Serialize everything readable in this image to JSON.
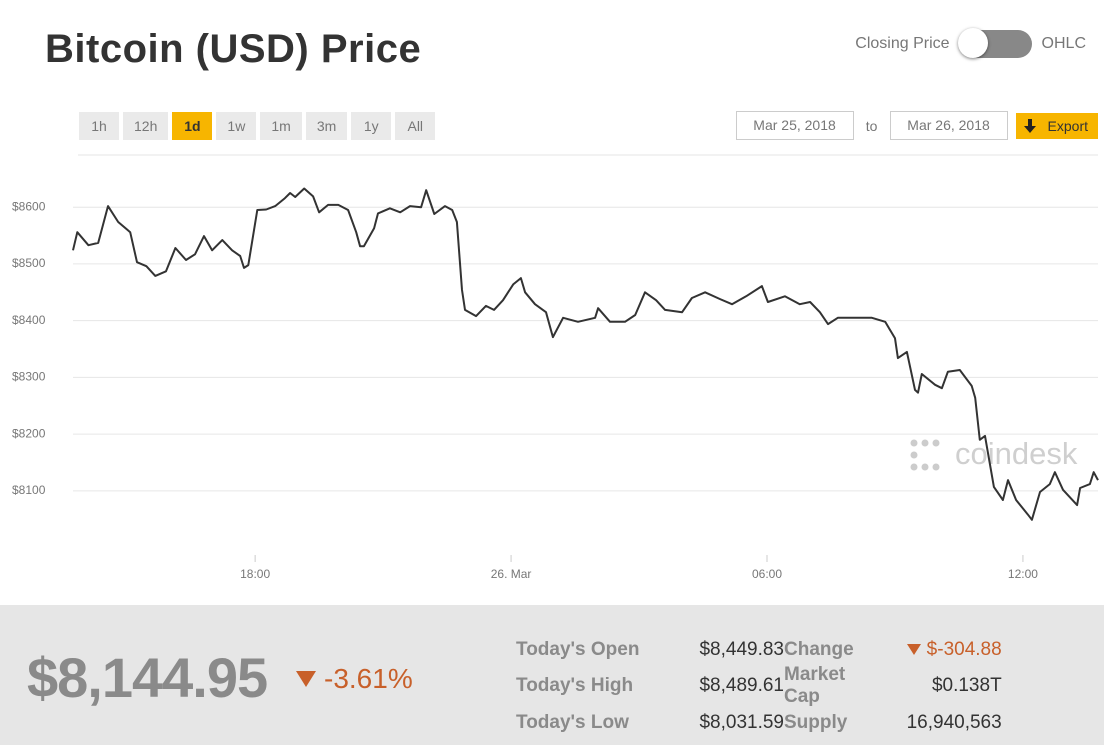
{
  "header": {
    "title": "Bitcoin (USD) Price",
    "toggle_left": "Closing Price",
    "toggle_right": "OHLC"
  },
  "ranges": {
    "items": [
      "1h",
      "12h",
      "1d",
      "1w",
      "1m",
      "3m",
      "1y",
      "All"
    ],
    "active": 2
  },
  "dates": {
    "from": "Mar 25, 2018",
    "to_label": "to",
    "to": "Mar 26, 2018",
    "export": "Export"
  },
  "chart_data": {
    "type": "line",
    "color": "#333333",
    "watermark": "coindesk",
    "x": [
      13.73,
      13.83,
      14.09,
      14.32,
      14.55,
      14.79,
      15.07,
      15.23,
      15.45,
      15.66,
      15.91,
      16.13,
      16.38,
      16.59,
      16.8,
      16.99,
      17.23,
      17.46,
      17.65,
      17.74,
      17.84,
      18.05,
      18.26,
      18.47,
      18.7,
      18.82,
      18.94,
      19.15,
      19.36,
      19.5,
      19.71,
      19.95,
      20.18,
      20.37,
      20.46,
      20.55,
      20.79,
      20.88,
      21.16,
      21.4,
      21.63,
      21.89,
      22.01,
      22.2,
      22.45,
      22.62,
      22.73,
      22.85,
      22.92,
      23.18,
      23.41,
      23.6,
      23.81,
      24.05,
      24.23,
      24.33,
      24.56,
      24.82,
      24.98,
      25.22,
      25.57,
      25.97,
      26.04,
      26.32,
      26.67,
      26.91,
      27.14,
      27.4,
      27.61,
      28.01,
      28.24,
      28.55,
      28.9,
      29.18,
      29.51,
      29.88,
      30.02,
      30.42,
      30.77,
      31.01,
      31.24,
      31.43,
      31.66,
      31.85,
      32.18,
      32.46,
      32.77,
      33.0,
      33.07,
      33.28,
      33.47,
      33.54,
      33.63,
      33.94,
      34.1,
      34.24,
      34.52,
      34.8,
      34.88,
      34.99,
      35.11,
      35.32,
      35.53,
      35.65,
      35.84,
      36.12,
      36.21,
      36.4,
      36.63,
      36.75,
      36.94,
      37.27,
      37.34,
      37.57,
      37.66,
      37.76
    ],
    "values": [
      8524,
      8556,
      8533,
      8537,
      8602,
      8574,
      8556,
      8503,
      8496,
      8479,
      8487,
      8528,
      8507,
      8517,
      8549,
      8524,
      8542,
      8524,
      8514,
      8493,
      8498,
      8595,
      8596,
      8602,
      8616,
      8625,
      8618,
      8633,
      8619,
      8591,
      8604,
      8604,
      8595,
      8556,
      8531,
      8531,
      8563,
      8589,
      8598,
      8591,
      8602,
      8600,
      8630,
      8588,
      8602,
      8595,
      8574,
      8454,
      8419,
      8408,
      8426,
      8419,
      8436,
      8464,
      8475,
      8450,
      8429,
      8415,
      8371,
      8405,
      8398,
      8405,
      8422,
      8398,
      8398,
      8410,
      8450,
      8436,
      8419,
      8415,
      8440,
      8450,
      8438,
      8429,
      8443,
      8461,
      8433,
      8443,
      8429,
      8433,
      8415,
      8394,
      8405,
      8405,
      8405,
      8405,
      8398,
      8369,
      8334,
      8345,
      8278,
      8273,
      8306,
      8287,
      8281,
      8310,
      8313,
      8285,
      8264,
      8190,
      8197,
      8107,
      8084,
      8119,
      8084,
      8058,
      8049,
      8098,
      8112,
      8133,
      8102,
      8075,
      8105,
      8112,
      8133,
      8119
    ],
    "xlim": [
      13.73,
      37.76
    ],
    "xticks": [
      {
        "value": 18,
        "label": "18:00"
      },
      {
        "value": 24,
        "label": "26. Mar"
      },
      {
        "value": 30,
        "label": "06:00"
      },
      {
        "value": 36,
        "label": "12:00"
      }
    ],
    "ylim": [
      7987,
      8692
    ],
    "yticks": [
      {
        "value": 8100,
        "label": "$8100"
      },
      {
        "value": 8200,
        "label": "$8200"
      },
      {
        "value": 8300,
        "label": "$8300"
      },
      {
        "value": 8400,
        "label": "$8400"
      },
      {
        "value": 8500,
        "label": "$8500"
      },
      {
        "value": 8600,
        "label": "$8600"
      }
    ],
    "grid": true
  },
  "summary": {
    "price": "$8,144.95",
    "change_pct": "-3.61%"
  },
  "stats": {
    "rows": [
      [
        "Today's Open",
        "$8,449.83",
        "Change",
        "$-304.88"
      ],
      [
        "Today's High",
        "$8,489.61",
        "Market Cap",
        "$0.138T"
      ],
      [
        "Today's Low",
        "$8,031.59",
        "Supply",
        "16,940,563"
      ]
    ]
  }
}
